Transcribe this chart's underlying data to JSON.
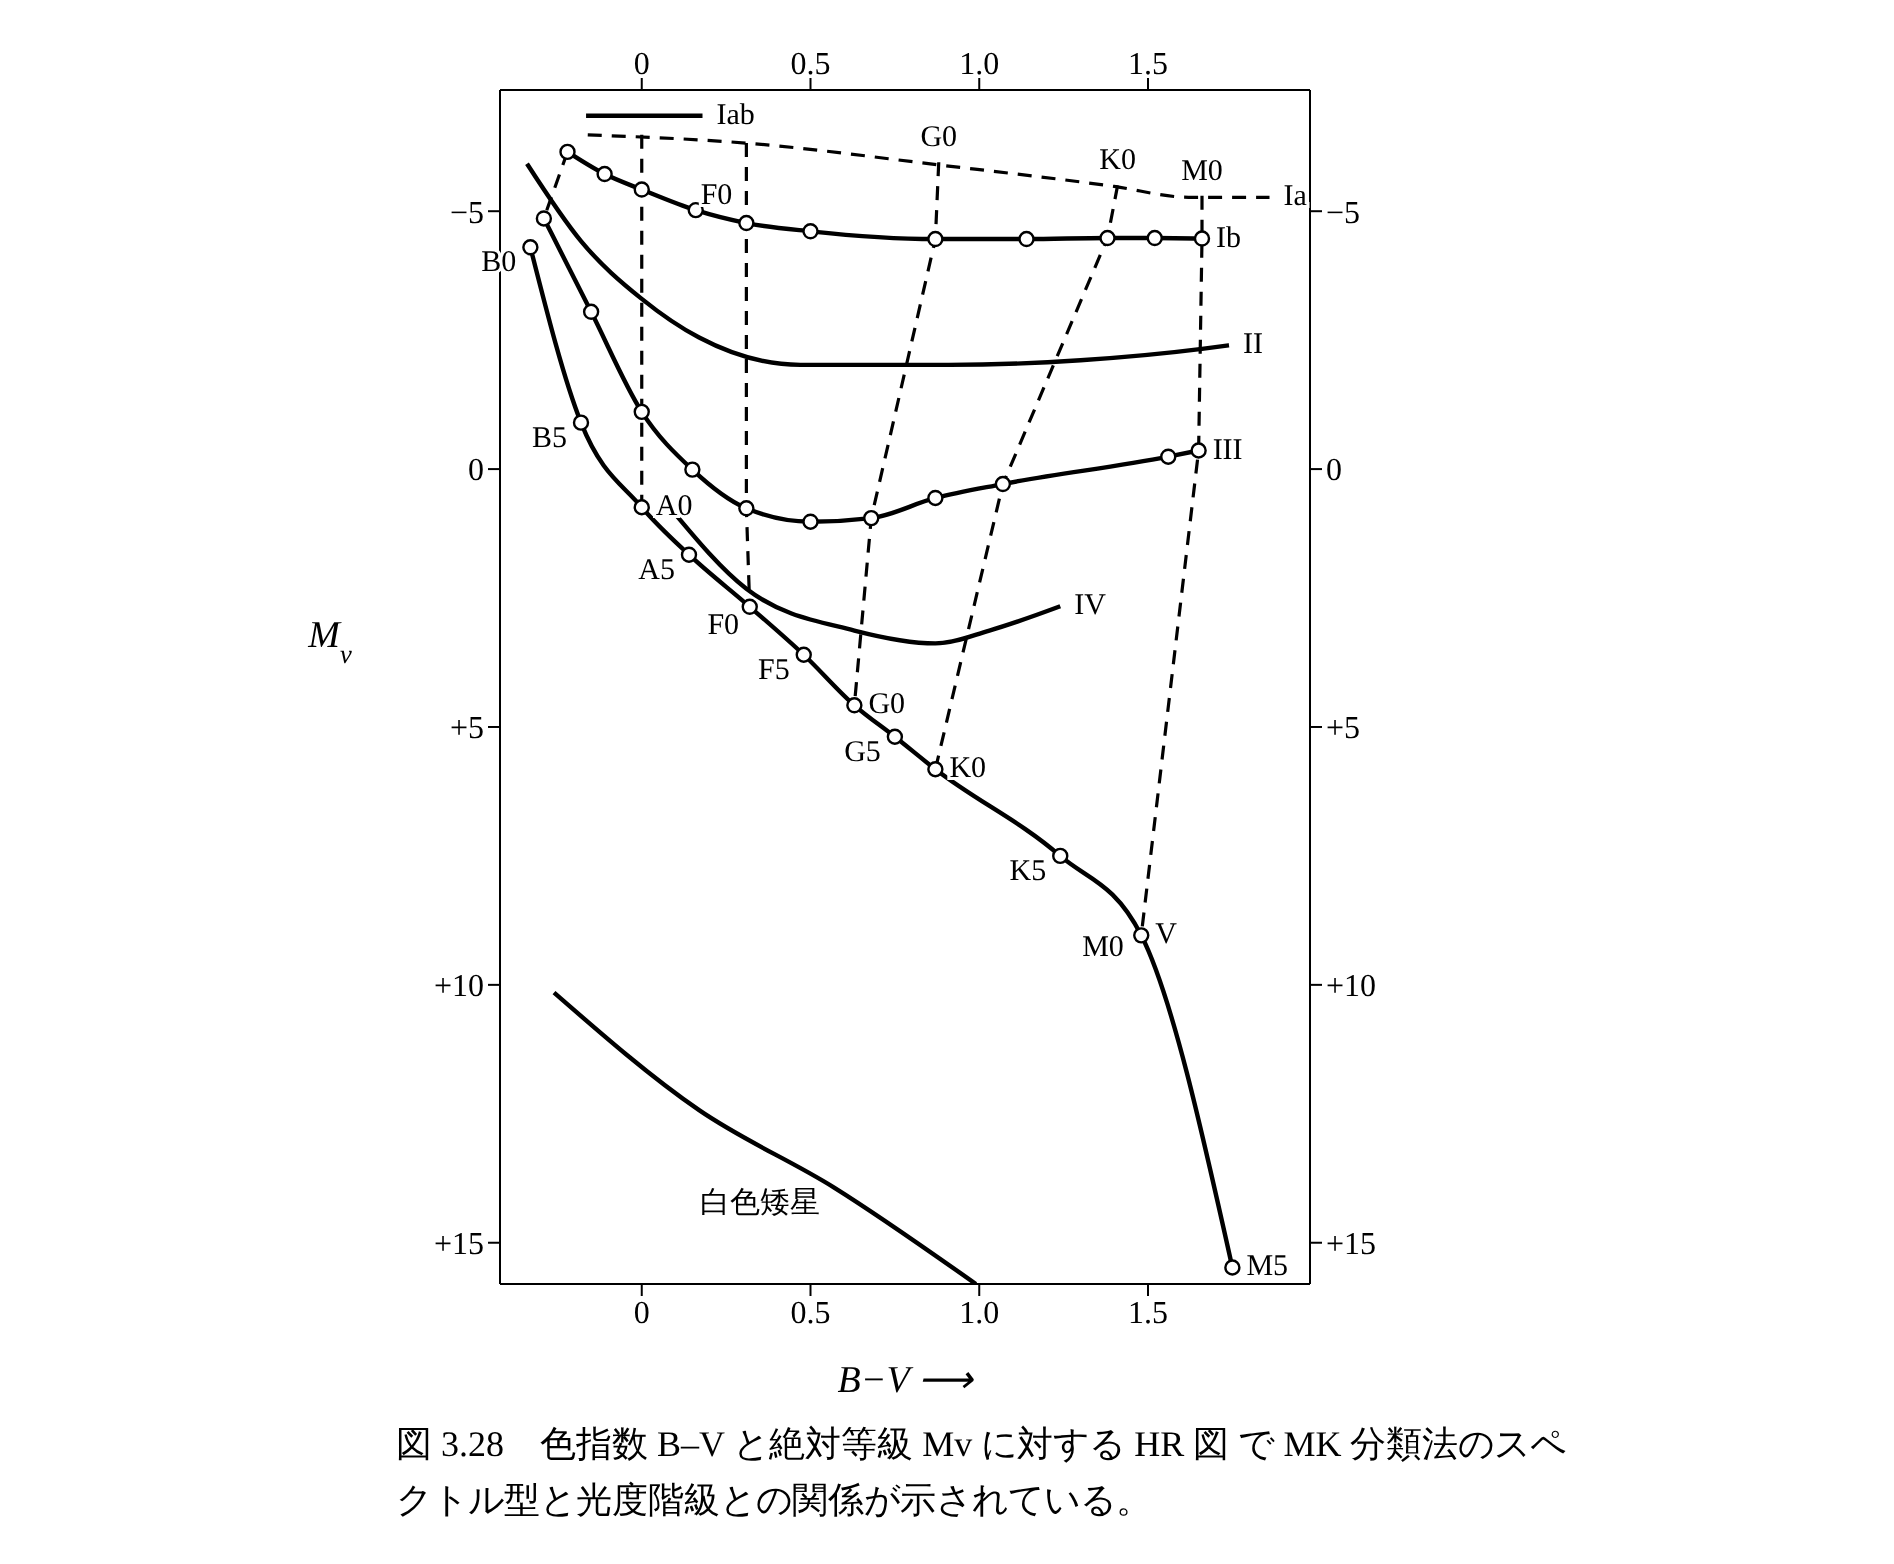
{
  "chart_data": {
    "type": "line",
    "xlabel": "B−V ⟶",
    "ylabel": "M$_{v}$",
    "xlim": [
      -0.42,
      1.98
    ],
    "xticks": [
      0,
      0.5,
      {
        "value": 1,
        "label": "1.0"
      },
      1.5
    ],
    "x2lim": [
      -0.42,
      1.98
    ],
    "x2ticks": [
      0,
      0.5,
      {
        "value": 1,
        "label": "1.0"
      },
      1.5
    ],
    "ylim": [
      15.8,
      -7.35
    ],
    "yticks": [
      {
        "value": -5,
        "label": "−5"
      },
      0,
      {
        "value": 5,
        "label": "+5"
      },
      {
        "value": 10,
        "label": "+10"
      },
      {
        "value": 15,
        "label": "+15"
      }
    ],
    "y2lim": [
      15.8,
      -7.35
    ],
    "y2ticks": [
      {
        "value": -5,
        "label": "−5"
      },
      0,
      {
        "value": 5,
        "label": "+5"
      },
      {
        "value": 10,
        "label": "+10"
      },
      {
        "value": 15,
        "label": "+15"
      }
    ],
    "grid": false,
    "legend": false,
    "series": [
      {
        "color": "#000000",
        "x": [
          -0.16,
          0.31,
          0.89,
          1.4,
          1.62,
          1.86
        ],
        "values": [
          -6.48,
          -6.32,
          -5.89,
          -5.48,
          -5.27,
          -5.27
        ],
        "line_style": "dashed",
        "marker": "none"
      },
      {
        "color": "#000000",
        "x": [
          -0.165,
          0.18
        ],
        "values": [
          -6.85,
          -6.85
        ],
        "line_style": "solid",
        "marker": "none"
      },
      {
        "color": "#000000",
        "x": [
          -0.22,
          -0.11,
          0,
          0.16,
          0.31,
          0.5,
          0.87,
          1.14,
          1.38,
          1.52,
          1.66
        ],
        "values": [
          -6.15,
          -5.72,
          -5.42,
          -5.02,
          -4.77,
          -4.61,
          -4.46,
          -4.46,
          -4.48,
          -4.48,
          -4.47
        ],
        "line_style": "solid",
        "marker": "circle"
      },
      {
        "color": "#000000",
        "x": [
          -0.34,
          -0.18,
          0,
          0.17,
          0.47,
          0.91,
          1.3,
          1.66,
          1.74
        ],
        "values": [
          -5.92,
          -4.42,
          -3.3,
          -2.55,
          -2.02,
          -2.02,
          -2.11,
          -2.33,
          -2.4
        ],
        "line_style": "solid",
        "marker": "none"
      },
      {
        "color": "#000000",
        "x": [
          -0.29,
          -0.15,
          0,
          0.15,
          0.31,
          0.5,
          0.68,
          0.87,
          1.07,
          1.56,
          1.65
        ],
        "values": [
          -4.86,
          -3.05,
          -1.11,
          0.01,
          0.76,
          1.02,
          0.95,
          0.56,
          0.29,
          -0.24,
          -0.36
        ],
        "line_style": "solid",
        "marker": "circle"
      },
      {
        "color": "#000000",
        "x": [
          0.09,
          0.31,
          0.63,
          0.87,
          1.03,
          1.24
        ],
        "values": [
          0.8,
          2.32,
          3.13,
          3.38,
          3.13,
          2.66
        ],
        "line_style": "solid",
        "marker": "none"
      },
      {
        "color": "#000000",
        "x": [
          -0.33,
          -0.18,
          0,
          0.14,
          0.32,
          0.48,
          0.63,
          0.75,
          0.87,
          1.24,
          1.48,
          1.75
        ],
        "values": [
          -4.3,
          -0.9,
          0.74,
          1.66,
          2.67,
          3.6,
          4.58,
          5.19,
          5.82,
          7.5,
          9.04,
          15.48
        ],
        "line_style": "solid",
        "marker": "circle"
      },
      {
        "color": "#000000",
        "x": [
          -0.26,
          0.17,
          0.57,
          0.99
        ],
        "values": [
          10.15,
          12.43,
          13.93,
          15.8
        ],
        "line_style": "solid",
        "marker": "none"
      },
      {
        "color": "#000000",
        "x": [
          -0.22,
          -0.29
        ],
        "values": [
          -6.15,
          -4.86
        ],
        "line_style": "dashed",
        "marker": "none"
      },
      {
        "color": "#000000",
        "x": [
          0,
          0,
          0,
          0
        ],
        "values": [
          -6.48,
          -5.42,
          -1.11,
          0.74
        ],
        "line_style": "dashed",
        "marker": "none"
      },
      {
        "color": "#000000",
        "x": [
          0.31,
          0.31,
          0.31,
          0.32
        ],
        "values": [
          -6.32,
          -4.77,
          0.76,
          2.67
        ],
        "line_style": "dashed",
        "marker": "none"
      },
      {
        "color": "#000000",
        "x": [
          0.88,
          0.87,
          0.68,
          0.63
        ],
        "values": [
          -5.95,
          -4.46,
          0.95,
          4.58
        ],
        "line_style": "dashed",
        "marker": "none"
      },
      {
        "color": "#000000",
        "x": [
          1.41,
          1.38,
          1.07,
          0.87
        ],
        "values": [
          -5.5,
          -4.48,
          0.29,
          5.82
        ],
        "line_style": "dashed",
        "marker": "none"
      },
      {
        "color": "#000000",
        "x": [
          1.66,
          1.66,
          1.65,
          1.48
        ],
        "values": [
          -5.3,
          -4.47,
          -0.36,
          9.04
        ],
        "line_style": "dashed",
        "marker": "none"
      }
    ],
    "annotations": [
      {
        "text": "B0",
        "x": -0.33,
        "y": -4.3
      },
      {
        "text": "B5",
        "x": -0.18,
        "y": -0.9
      },
      {
        "text": "A0",
        "x": 0,
        "y": 0.74
      },
      {
        "text": "A5",
        "x": 0.14,
        "y": 1.66
      },
      {
        "text": "F0",
        "x": 0.33,
        "y": 2.73
      },
      {
        "text": "F5",
        "x": 0.48,
        "y": 3.6
      },
      {
        "text": "G0",
        "x": 0.63,
        "y": 4.58
      },
      {
        "text": "G5",
        "x": 0.75,
        "y": 5.19
      },
      {
        "text": "K0",
        "x": 0.87,
        "y": 5.82
      },
      {
        "text": "K5",
        "x": 1.24,
        "y": 7.5
      },
      {
        "text": "M0",
        "x": 1.47,
        "y": 8.98
      },
      {
        "text": "M5",
        "x": 1.75,
        "y": 15.48
      },
      {
        "text": "V",
        "x": 1.48,
        "y": 9.04
      },
      {
        "text": "Ia",
        "x": 1.86,
        "y": -5.27
      },
      {
        "text": "Iab",
        "x": 0.18,
        "y": -6.85
      },
      {
        "text": "Ib",
        "x": 1.66,
        "y": -4.47
      },
      {
        "text": "II",
        "x": 1.74,
        "y": -2.4
      },
      {
        "text": "III",
        "x": 1.65,
        "y": -0.36
      },
      {
        "text": "IV",
        "x": 1.24,
        "y": 2.66
      },
      {
        "text": "F0",
        "x": 0.31,
        "y": -5.6
      },
      {
        "text": "G0",
        "x": 0.88,
        "y": -5.95
      },
      {
        "text": "K0",
        "x": 1.41,
        "y": -5.5
      },
      {
        "text": "M0",
        "x": 1.66,
        "y": -5.3
      },
      {
        "text": "白色矮星",
        "x": 0.57,
        "y": 13.93
      },
      "図 3.28　色指数 B–V と絶対等級 Mv に対する HR 図 で MK 分類法のスペクトル型と光度階級との関係が示されている。"
    ]
  }
}
